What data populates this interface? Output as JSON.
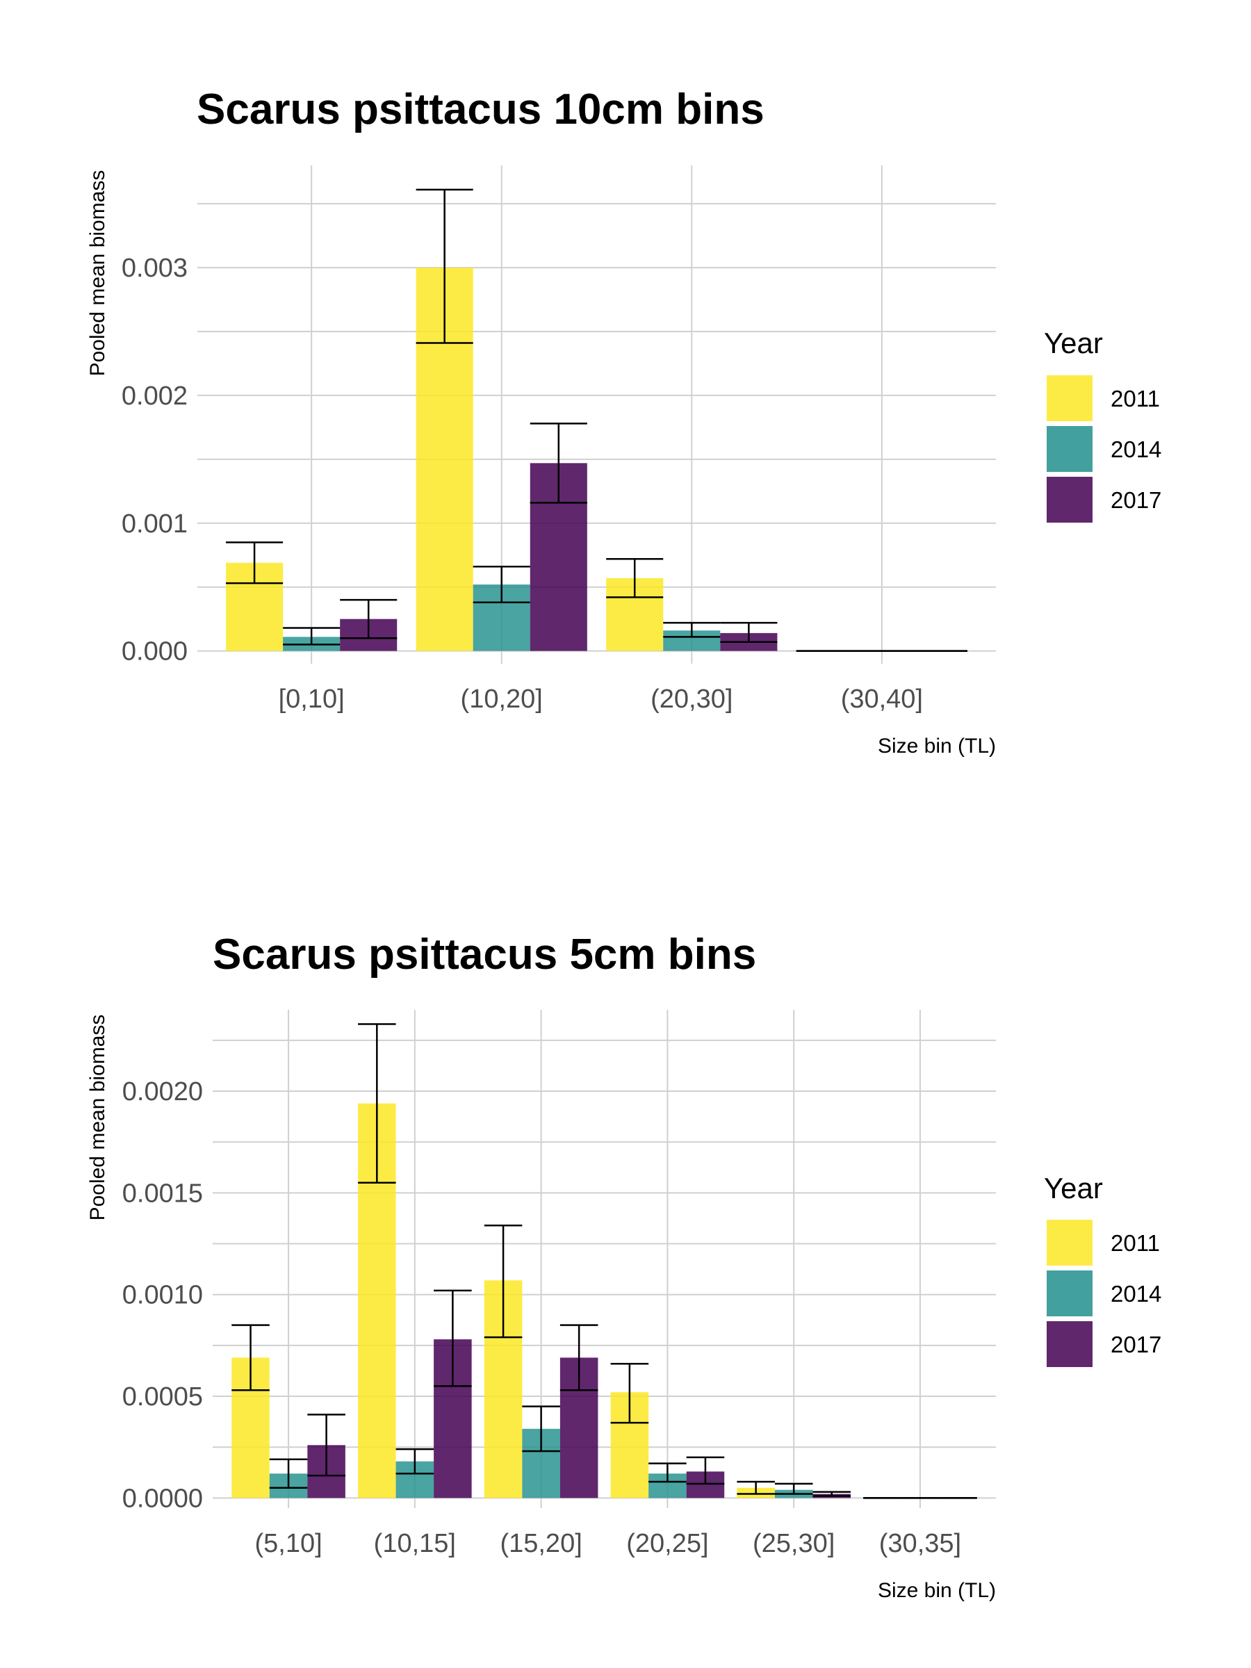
{
  "chart_data": [
    {
      "type": "bar",
      "title": "Scarus psittacus 10cm bins",
      "xlabel": "Size bin (TL)",
      "ylabel": "Pooled mean biomass",
      "categories": [
        "[0,10]",
        "(10,20]",
        "(20,30]",
        "(30,40]"
      ],
      "ylim": [
        -0.0001,
        0.0038
      ],
      "yticks": [
        "0.000",
        "0.001",
        "0.002",
        "0.003"
      ],
      "ytick_values": [
        0,
        0.001,
        0.002,
        0.003
      ],
      "grid": true,
      "legend_title": "Year",
      "legend_position": "right",
      "series": [
        {
          "name": "2011",
          "color": "#fde725",
          "values": [
            0.00069,
            0.003,
            0.00057,
            0
          ],
          "err_low": [
            0.00053,
            0.00241,
            0.00042,
            0
          ],
          "err_high": [
            0.00085,
            0.00361,
            0.00072,
            0
          ]
        },
        {
          "name": "2014",
          "color": "#21908d",
          "values": [
            0.00011,
            0.00052,
            0.00016,
            0
          ],
          "err_low": [
            5e-05,
            0.00038,
            0.00011,
            0
          ],
          "err_high": [
            0.00018,
            0.00066,
            0.00022,
            0
          ]
        },
        {
          "name": "2017",
          "color": "#440154",
          "values": [
            0.00025,
            0.00147,
            0.00014,
            0
          ],
          "err_low": [
            0.0001,
            0.00116,
            7e-05,
            0
          ],
          "err_high": [
            0.0004,
            0.00178,
            0.00022,
            0
          ]
        }
      ]
    },
    {
      "type": "bar",
      "title": "Scarus psittacus 5cm bins",
      "xlabel": "Size bin (TL)",
      "ylabel": "Pooled mean biomass",
      "categories": [
        "(5,10]",
        "(10,15]",
        "(15,20]",
        "(20,25]",
        "(25,30]",
        "(30,35]"
      ],
      "ylim": [
        -5e-05,
        0.0024
      ],
      "yticks": [
        "0.0000",
        "0.0005",
        "0.0010",
        "0.0015",
        "0.0020"
      ],
      "ytick_values": [
        0,
        0.0005,
        0.001,
        0.0015,
        0.002
      ],
      "grid": true,
      "legend_title": "Year",
      "legend_position": "right",
      "series": [
        {
          "name": "2011",
          "color": "#fde725",
          "values": [
            0.00069,
            0.00194,
            0.00107,
            0.00052,
            5e-05,
            0
          ],
          "err_low": [
            0.00053,
            0.00155,
            0.00079,
            0.00037,
            2e-05,
            0
          ],
          "err_high": [
            0.00085,
            0.00233,
            0.00134,
            0.00066,
            8e-05,
            0
          ]
        },
        {
          "name": "2014",
          "color": "#21908d",
          "values": [
            0.00012,
            0.00018,
            0.00034,
            0.00012,
            4e-05,
            0
          ],
          "err_low": [
            5e-05,
            0.00012,
            0.00023,
            8e-05,
            2e-05,
            0
          ],
          "err_high": [
            0.00019,
            0.00024,
            0.00045,
            0.00017,
            7e-05,
            0
          ]
        },
        {
          "name": "2017",
          "color": "#440154",
          "values": [
            0.00026,
            0.00078,
            0.00069,
            0.00013,
            2e-05,
            0
          ],
          "err_low": [
            0.00011,
            0.00055,
            0.00053,
            7e-05,
            1e-05,
            0
          ],
          "err_high": [
            0.00041,
            0.00102,
            0.00085,
            0.0002,
            3e-05,
            0
          ]
        }
      ]
    }
  ]
}
